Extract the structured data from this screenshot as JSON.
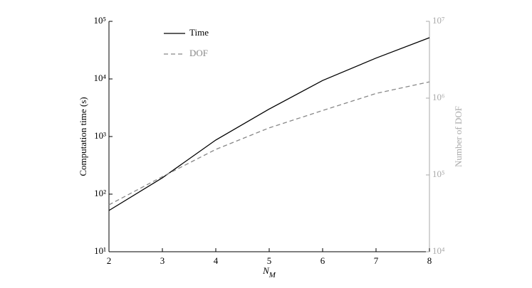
{
  "chart_data": {
    "type": "line",
    "x": [
      2,
      3,
      4,
      5,
      6,
      7,
      8
    ],
    "xlim": [
      2,
      8
    ],
    "xticks": [
      2,
      3,
      4,
      5,
      6,
      7,
      8
    ],
    "xlabel": {
      "text": "N",
      "subscript": "M"
    },
    "ylabel": "Computation time (s)",
    "y2label": "Number of DOF",
    "log_y": true,
    "log_y2": true,
    "ylim": [
      10,
      100000
    ],
    "yticks": [
      {
        "value": 10,
        "label": "10¹"
      },
      {
        "value": 100,
        "label": "10²"
      },
      {
        "value": 1000,
        "label": "10³"
      },
      {
        "value": 10000,
        "label": "10⁴"
      },
      {
        "value": 100000,
        "label": "10⁵"
      }
    ],
    "y2lim": [
      10000,
      10000000
    ],
    "y2ticks": [
      {
        "value": 10000,
        "label": "10⁴"
      },
      {
        "value": 100000,
        "label": "10⁵"
      },
      {
        "value": 1000000,
        "label": "10⁶"
      },
      {
        "value": 10000000,
        "label": "10⁷"
      }
    ],
    "y2color": "#aaaaaa",
    "legend": "upper left",
    "series": [
      {
        "name": "Time",
        "color": "#000000",
        "dash": "solid",
        "values": [
          52,
          192,
          870,
          3000,
          9400,
          23000,
          52000
        ]
      },
      {
        "name": "DOF",
        "color": "#888888",
        "dash": "dashed",
        "axis": "y2",
        "values": [
          40800,
          95000,
          215000,
          410000,
          690000,
          1150000,
          1630000
        ]
      }
    ]
  }
}
